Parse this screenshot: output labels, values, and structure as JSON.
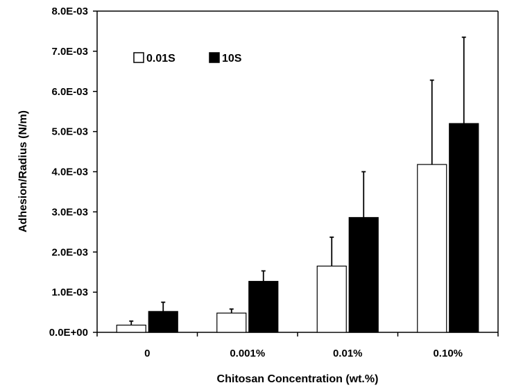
{
  "chart_data": {
    "type": "bar",
    "title": "",
    "xlabel": "Chitosan Concentration (wt.%)",
    "ylabel": "Adhesion/Radius (N/m)",
    "ylim": [
      0,
      0.008
    ],
    "y_ticks": [
      0,
      0.001,
      0.002,
      0.003,
      0.004,
      0.005,
      0.006,
      0.007,
      0.008
    ],
    "y_tick_labels": [
      "0.0E+00",
      "1.0E-03",
      "2.0E-03",
      "3.0E-03",
      "4.0E-03",
      "5.0E-03",
      "6.0E-03",
      "7.0E-03",
      "8.0E-03"
    ],
    "categories": [
      "0",
      "0.001%",
      "0.01%",
      "0.10%"
    ],
    "grid": false,
    "legend_position": "top-left",
    "series": [
      {
        "name": "0.01S",
        "fill": "#ffffff",
        "stroke": "#000000",
        "values": [
          0.00018,
          0.00048,
          0.00165,
          0.00418
        ],
        "errors": [
          0.0001,
          0.0001,
          0.00072,
          0.0021
        ]
      },
      {
        "name": "10S",
        "fill": "#000000",
        "stroke": "#000000",
        "values": [
          0.00052,
          0.00127,
          0.00286,
          0.0052
        ],
        "errors": [
          0.00023,
          0.00026,
          0.00114,
          0.00215
        ]
      }
    ]
  }
}
